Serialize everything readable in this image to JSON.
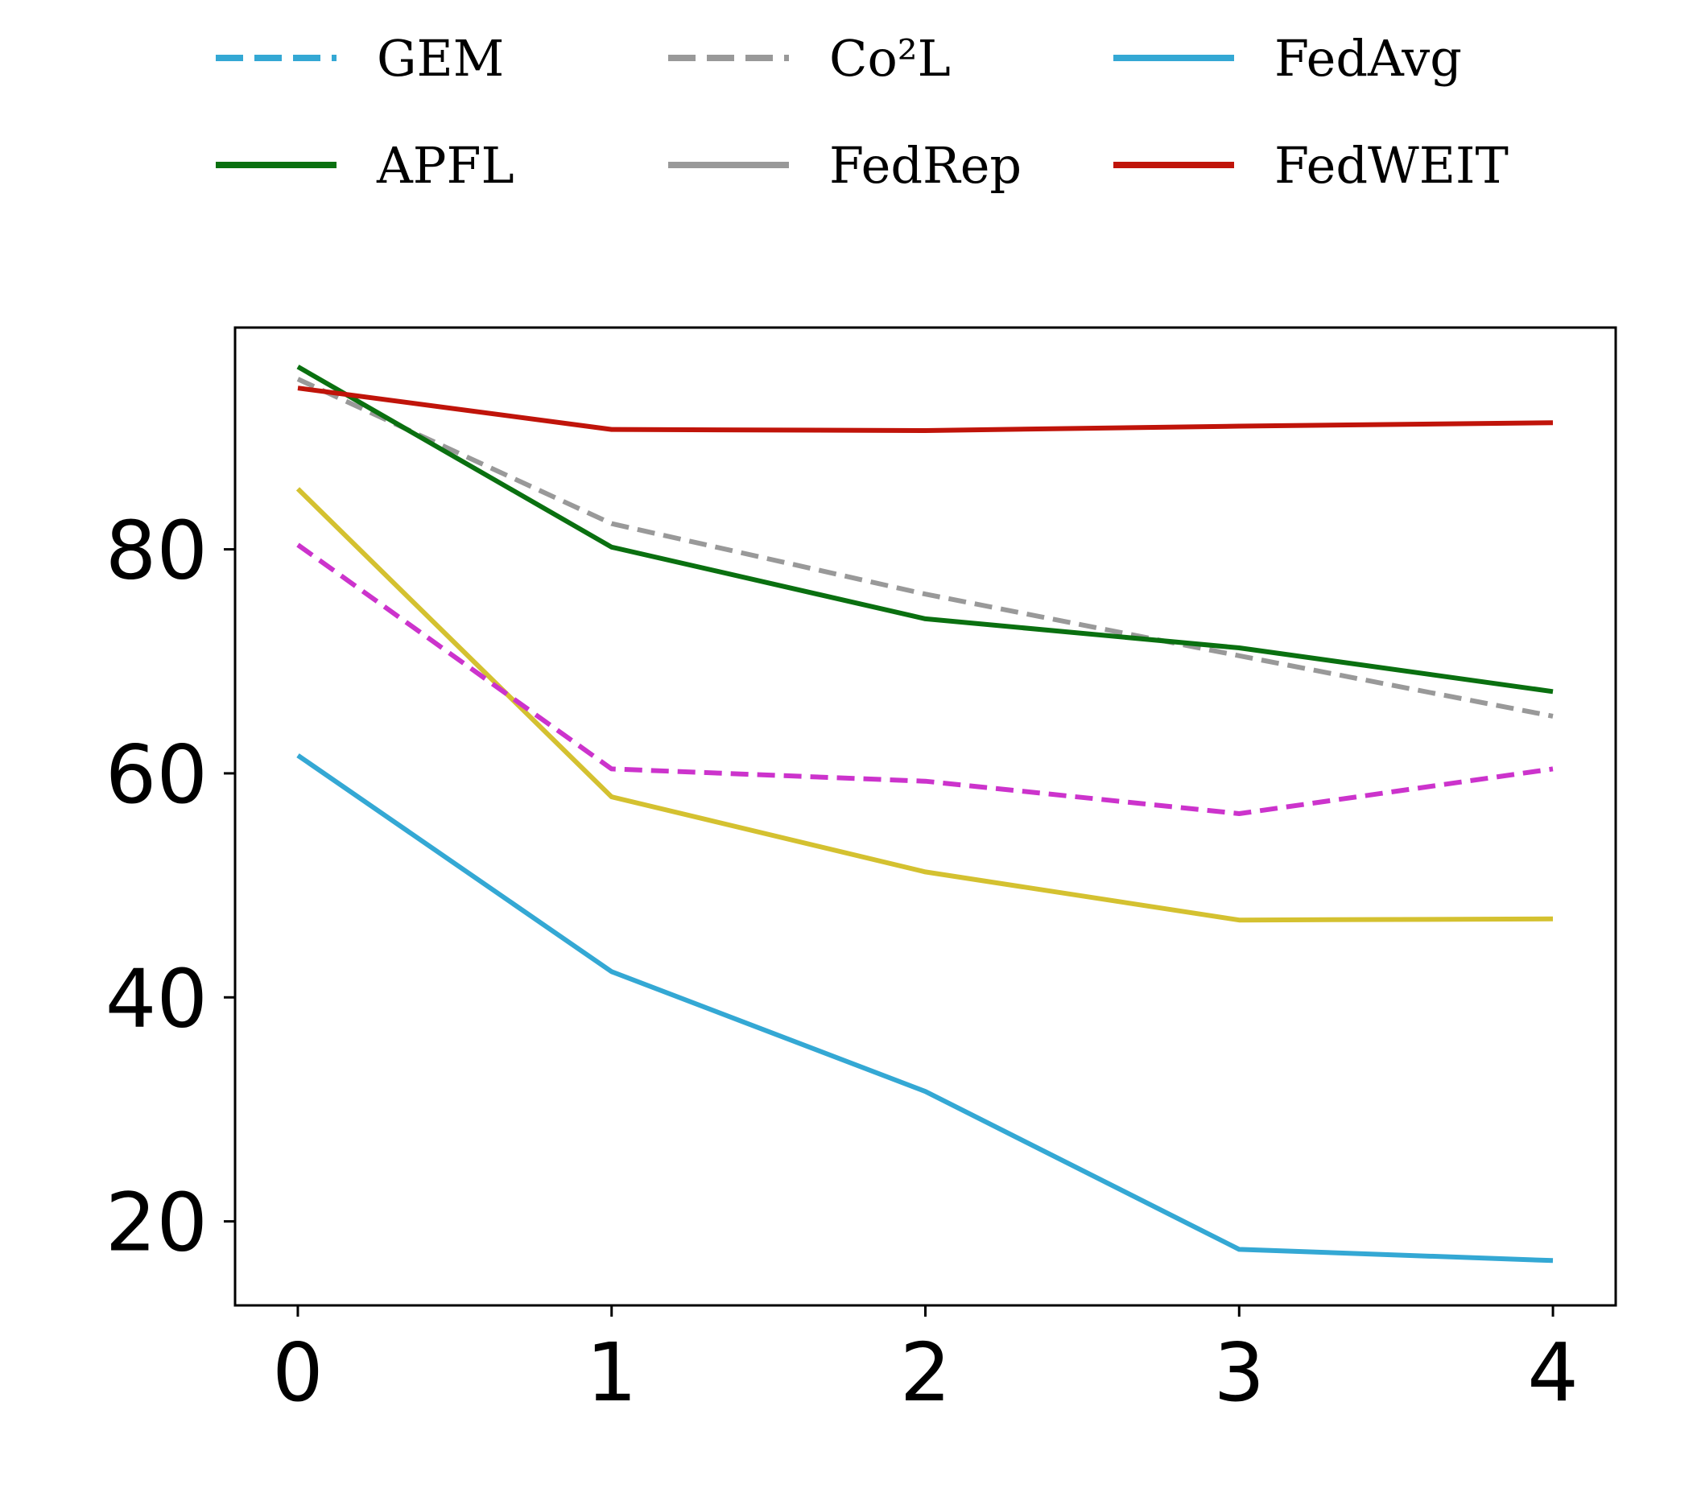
{
  "chart_data": {
    "type": "line",
    "title": "",
    "xlabel": "",
    "ylabel": "",
    "x": [
      0,
      1,
      2,
      3,
      4
    ],
    "x_ticks": [
      "0",
      "1",
      "2",
      "3",
      "4"
    ],
    "y_ticks": [
      "20",
      "40",
      "60",
      "80"
    ],
    "y_tick_values": [
      20,
      40,
      60,
      80
    ],
    "xlim": [
      -0.2,
      4.2
    ],
    "ylim": [
      12.5,
      99.8
    ],
    "grid": false,
    "legend": {
      "placement": "top",
      "columns": 3,
      "entries": [
        {
          "label": "GEM",
          "color": "#34a8d4",
          "dashed": true
        },
        {
          "label": "Co²L",
          "color": "#999999",
          "dashed": true
        },
        {
          "label": "FedAvg",
          "color": "#34a8d4",
          "dashed": false
        },
        {
          "label": "APFL",
          "color": "#0a7010",
          "dashed": false
        },
        {
          "label": "FedRep",
          "color": "#999999",
          "dashed": false
        },
        {
          "label": "FedWEIT",
          "color": "#c0140a",
          "dashed": false
        }
      ]
    },
    "series": [
      {
        "color": "#34a8d4",
        "dashed": false,
        "values": [
          61.6,
          42.3,
          31.6,
          17.5,
          16.5
        ]
      },
      {
        "color": "#d4c130",
        "dashed": false,
        "values": [
          85.4,
          57.9,
          51.2,
          46.9,
          47.0
        ]
      },
      {
        "color": "#cc33cc",
        "dashed": true,
        "values": [
          80.4,
          60.4,
          59.3,
          56.4,
          60.4
        ]
      },
      {
        "color": "#999999",
        "dashed": true,
        "values": [
          95.2,
          82.3,
          76.0,
          70.5,
          65.1
        ]
      },
      {
        "color": "#0a7010",
        "dashed": false,
        "values": [
          96.3,
          80.2,
          73.8,
          71.2,
          67.3
        ]
      },
      {
        "color": "#c0140a",
        "dashed": false,
        "values": [
          94.4,
          90.7,
          90.6,
          91.0,
          91.3
        ]
      }
    ]
  }
}
